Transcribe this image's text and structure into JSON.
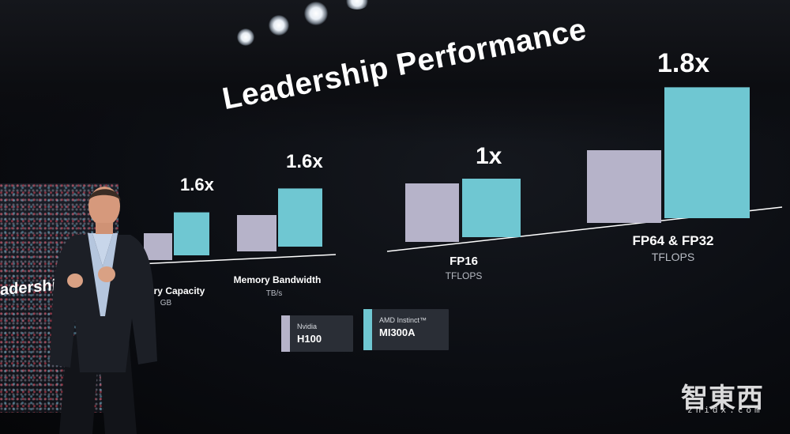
{
  "slide": {
    "title": "Leadership Performance",
    "side_screen_caption": "adership Perfo"
  },
  "colors": {
    "nvidia": "#b6b3c9",
    "amd": "#6fc7d2",
    "background": "#07080c",
    "text": "#ffffff"
  },
  "legend": [
    {
      "small": "Nvidia",
      "big": "H100",
      "color": "#b6b3c9"
    },
    {
      "small": "AMD Instinct™",
      "big": "MI300A",
      "color": "#6fc7d2"
    }
  ],
  "chart_data": {
    "type": "bar",
    "title": "Leadership Performance",
    "categories": [
      {
        "label": "mory Capacity",
        "unit": "GB"
      },
      {
        "label": "Memory Bandwidth",
        "unit": "TB/s"
      },
      {
        "label": "FP16",
        "unit": "TFLOPS"
      },
      {
        "label": "FP64 & FP32",
        "unit": "TFLOPS"
      }
    ],
    "series": [
      {
        "name": "Nvidia H100",
        "values": [
          1.0,
          1.0,
          1.0,
          1.0
        ]
      },
      {
        "name": "AMD Instinct™ MI300A",
        "values": [
          1.6,
          1.6,
          1.0,
          1.8
        ]
      }
    ],
    "annotations": [
      "1.6x",
      "1.6x",
      "1x",
      "1.8x"
    ]
  },
  "watermark": {
    "main": "智東西",
    "sub": "zhidx.com"
  }
}
